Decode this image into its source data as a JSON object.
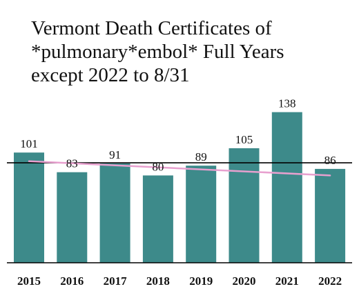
{
  "chart_data": {
    "type": "bar",
    "title": "Vermont Death Certificates of\n*pulmonary*embol* Full Years\nexcept 2022 to 8/31",
    "categories": [
      "2015",
      "2016",
      "2017",
      "2018",
      "2019",
      "2020",
      "2021",
      "2022"
    ],
    "values": [
      101,
      83,
      91,
      80,
      89,
      105,
      138,
      86
    ],
    "ylim": [
      0,
      158
    ],
    "reference_line": 91.6,
    "trendline": {
      "start": 93,
      "end": 80
    },
    "grid": false,
    "legend": "none",
    "colors": {
      "bar": "#3d8a8a",
      "reference_line": "#000000",
      "trendline": "#e8a0cf",
      "axis": "#000000"
    }
  }
}
